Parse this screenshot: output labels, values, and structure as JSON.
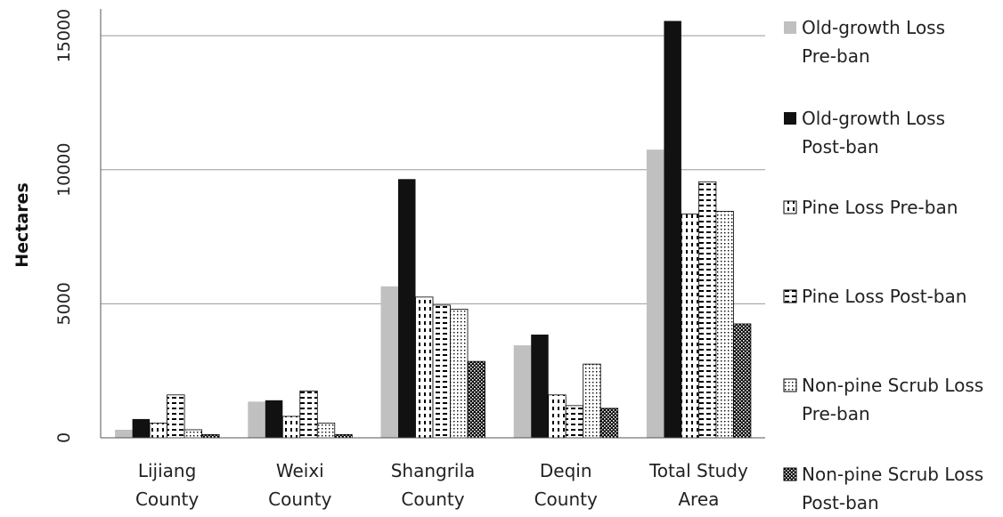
{
  "chart_data": {
    "type": "bar",
    "ylabel": "Hectares",
    "xlabel": "",
    "ylim": [
      0,
      16000
    ],
    "yticks": [
      0,
      5000,
      10000,
      15000
    ],
    "grid": true,
    "legend_position": "right",
    "categories": [
      [
        "Lijiang",
        "County"
      ],
      [
        "Weixi",
        "County"
      ],
      [
        "Shangrila",
        "County"
      ],
      [
        "Deqin",
        "County"
      ],
      [
        "Total Study",
        "Area"
      ]
    ],
    "series": [
      {
        "name": [
          "Old-growth Loss",
          "Pre-ban"
        ],
        "pattern": "solid-gray",
        "color": "#c0c0c0",
        "values": [
          300,
          1350,
          5650,
          3450,
          10750
        ]
      },
      {
        "name": [
          "Old-growth Loss",
          "Post-ban"
        ],
        "pattern": "solid-black",
        "color": "#111111",
        "values": [
          700,
          1400,
          9650,
          3850,
          15550
        ]
      },
      {
        "name": [
          "Pine Loss Pre-ban"
        ],
        "pattern": "vertical-dashes",
        "color": "#000000",
        "values": [
          550,
          800,
          5250,
          1600,
          8350
        ]
      },
      {
        "name": [
          "Pine Loss Post-ban"
        ],
        "pattern": "horizontal-dashes",
        "color": "#000000",
        "values": [
          1600,
          1750,
          4950,
          1200,
          9550
        ]
      },
      {
        "name": [
          "Non-pine Scrub Loss",
          "Pre-ban"
        ],
        "pattern": "dots",
        "color": "#000000",
        "values": [
          300,
          550,
          4800,
          2750,
          8450
        ]
      },
      {
        "name": [
          "Non-pine Scrub Loss",
          "Post-ban"
        ],
        "pattern": "dense-dots",
        "color": "#000000",
        "values": [
          120,
          120,
          2850,
          1100,
          4250
        ]
      }
    ]
  }
}
